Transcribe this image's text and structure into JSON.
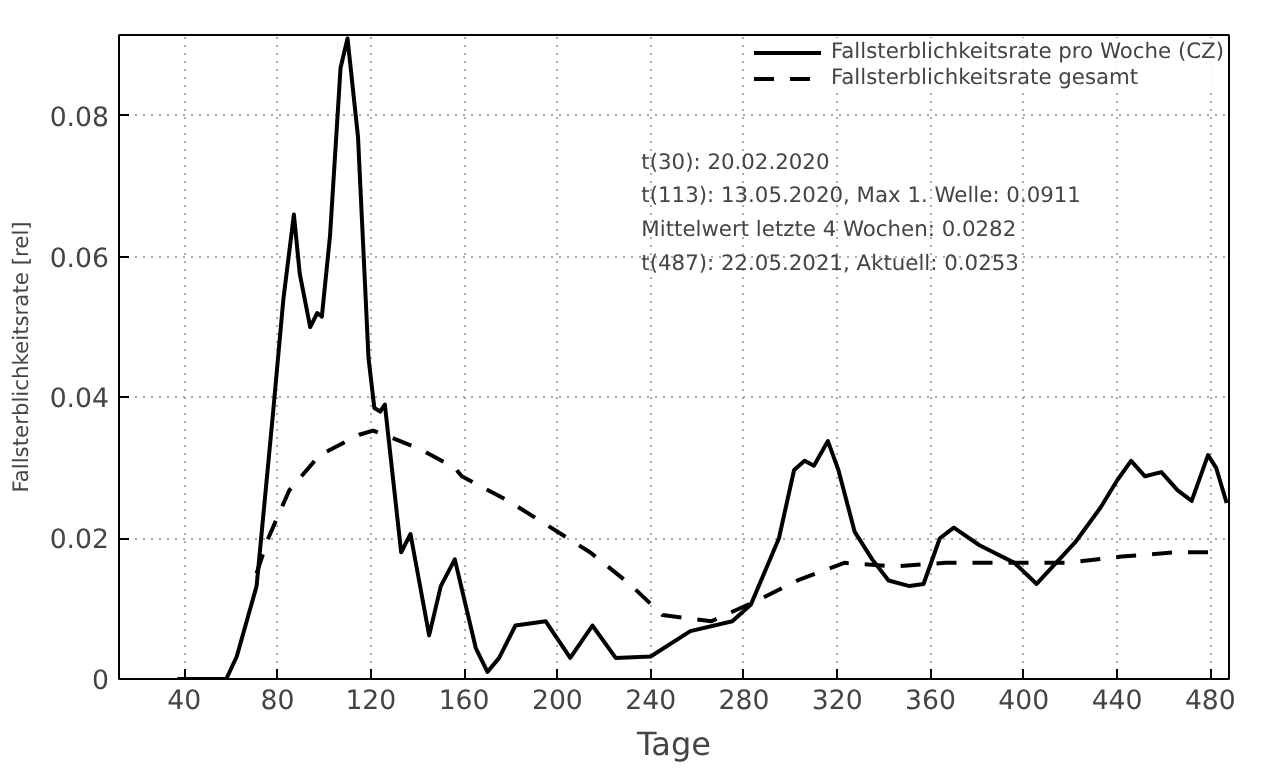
{
  "chart_data": {
    "type": "line",
    "xlabel": "Tage",
    "ylabel": "Fallsterblichkeitsrate [rel]",
    "xlim": [
      12,
      488
    ],
    "ylim": [
      0,
      0.0915
    ],
    "xticks": [
      40,
      80,
      120,
      160,
      200,
      240,
      280,
      320,
      360,
      400,
      440,
      480
    ],
    "yticks": [
      0,
      0.02,
      0.04,
      0.06,
      0.08
    ],
    "grid": true,
    "legend": "top right",
    "annotations": [
      "t(30): 20.02.2020",
      "t(113): 13.05.2020, Max 1. Welle: 0.0911",
      "Mittelwert letzte 4 Wochen: 0.0282",
      "t(487): 22.05.2021, Aktuell: 0.0253"
    ],
    "series": [
      {
        "name": "Fallsterblichkeitsrate pro Woche (CZ)",
        "color": "#000000",
        "line_style": "solid",
        "x": [
          37,
          58,
          62.5,
          71,
          78,
          82.5,
          87,
          89.5,
          94,
          97,
          99,
          102.5,
          107,
          110,
          114.5,
          119,
          121.5,
          124,
          126,
          133,
          137,
          145,
          150,
          156,
          165,
          170,
          175,
          182,
          195,
          205.5,
          215,
          225,
          240,
          257,
          275,
          283,
          295,
          301.5,
          306,
          310,
          316,
          320.5,
          327.5,
          335,
          342,
          351,
          357,
          364,
          370,
          381,
          396,
          405.5,
          422,
          433,
          440,
          446,
          452,
          459,
          466,
          472,
          479,
          482.5,
          487
        ],
        "values": [
          0,
          0,
          0.0032,
          0.0132,
          0.0376,
          0.054,
          0.066,
          0.0576,
          0.05,
          0.052,
          0.0515,
          0.063,
          0.0868,
          0.091,
          0.077,
          0.0456,
          0.0385,
          0.038,
          0.039,
          0.018,
          0.0206,
          0.0062,
          0.0132,
          0.017,
          0.0044,
          0.001,
          0.003,
          0.0076,
          0.0082,
          0.003,
          0.0076,
          0.003,
          0.0032,
          0.0068,
          0.0082,
          0.0106,
          0.02,
          0.0297,
          0.031,
          0.0303,
          0.0338,
          0.0297,
          0.0209,
          0.017,
          0.014,
          0.0132,
          0.0135,
          0.02,
          0.0215,
          0.019,
          0.0165,
          0.0135,
          0.0194,
          0.0244,
          0.0282,
          0.031,
          0.0288,
          0.0294,
          0.0268,
          0.0253,
          0.0318,
          0.03,
          0.025
        ]
      },
      {
        "name": "Fallsterblichkeitsrate gesamt",
        "color": "#000000",
        "line_style": "dashed",
        "x": [
          71,
          76,
          85,
          98,
          115,
          121,
          141,
          156,
          159,
          179,
          193,
          214,
          231,
          245,
          266,
          286,
          303,
          323,
          344,
          366.5,
          396,
          418.5,
          442,
          465,
          485
        ],
        "values": [
          0.015,
          0.02,
          0.0268,
          0.0318,
          0.0347,
          0.0353,
          0.0327,
          0.03,
          0.0288,
          0.0253,
          0.0224,
          0.018,
          0.0135,
          0.0091,
          0.0082,
          0.0112,
          0.014,
          0.0165,
          0.016,
          0.0165,
          0.0165,
          0.0165,
          0.0174,
          0.018,
          0.018
        ]
      }
    ]
  }
}
